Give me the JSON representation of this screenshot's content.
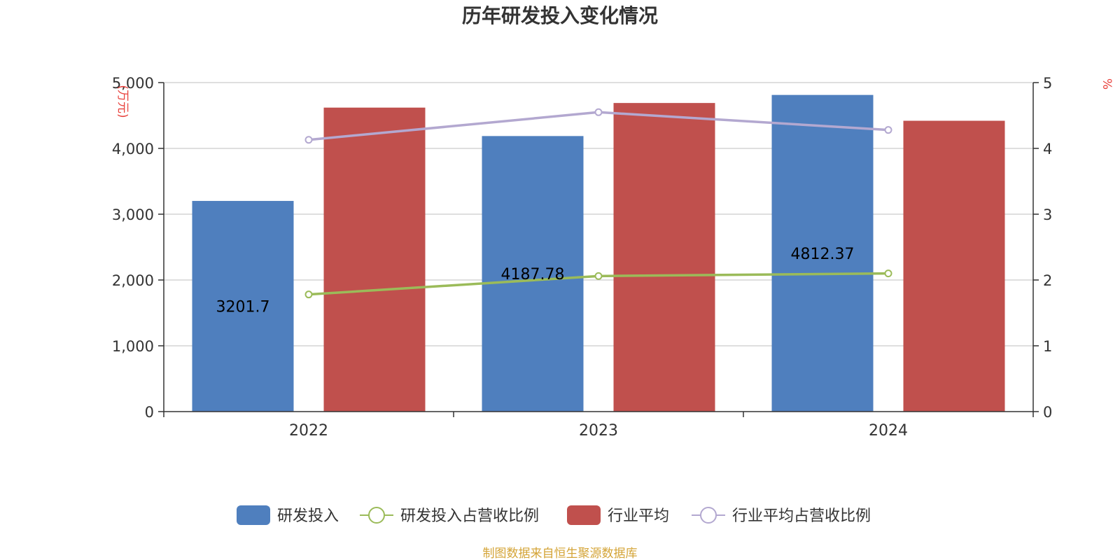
{
  "chart_data": {
    "type": "bar",
    "title": "历年研发投入变化情况",
    "categories": [
      "2022",
      "2023",
      "2024"
    ],
    "y_left": {
      "label": "(万元)",
      "min": 0,
      "max": 5000,
      "ticks": [
        0,
        1000,
        2000,
        3000,
        4000,
        5000
      ],
      "tick_labels": [
        "0",
        "1,000",
        "2,000",
        "3,000",
        "4,000",
        "5,000"
      ]
    },
    "y_right": {
      "label": "%",
      "min": 0,
      "max": 5,
      "ticks": [
        0,
        1,
        2,
        3,
        4,
        5
      ],
      "tick_labels": [
        "0",
        "1",
        "2",
        "3",
        "4",
        "5"
      ]
    },
    "series": [
      {
        "name": "研发投入",
        "kind": "bar",
        "axis": "left",
        "color": "#4f7fbe",
        "values": [
          3201.7,
          4187.78,
          4812.37
        ],
        "labels": [
          "3201.7",
          "4187.78",
          "4812.37"
        ]
      },
      {
        "name": "研发投入占营收比例",
        "kind": "line",
        "axis": "right",
        "color": "#9bbb59",
        "values": [
          1.78,
          2.06,
          2.1
        ]
      },
      {
        "name": "行业平均",
        "kind": "bar",
        "axis": "left",
        "color": "#c0504d",
        "values": [
          4620,
          4690,
          4420
        ]
      },
      {
        "name": "行业平均占营收比例",
        "kind": "line",
        "axis": "right",
        "color": "#b3a8d0",
        "values": [
          4.13,
          4.55,
          4.28
        ]
      }
    ],
    "source": "制图数据来自恒生聚源数据库",
    "grid": true,
    "legend_position": "bottom"
  },
  "colors": {
    "unit_label": "#e8413c",
    "source_text": "#d4a437",
    "axis": "#333333",
    "grid": "#cccccc"
  }
}
